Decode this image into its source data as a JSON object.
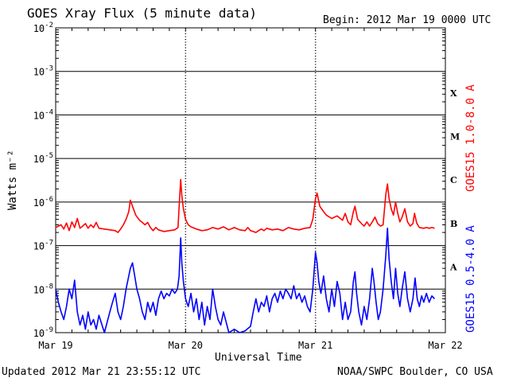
{
  "header": {
    "title": "GOES Xray Flux (5 minute data)",
    "begin": "Begin:  2012 Mar 19 0000 UTC"
  },
  "footer": {
    "updated": "Updated 2012 Mar 21 23:55:12 UTC",
    "credit": "NOAA/SWPC Boulder, CO USA"
  },
  "chart_data": {
    "type": "line",
    "title": "GOES Xray Flux (5 minute data)",
    "xlabel": "Universal Time",
    "ylabel": "Watts m⁻²",
    "yscale": "log",
    "ylim": [
      1e-09,
      0.01
    ],
    "xlim": [
      0,
      72
    ],
    "x_unit": "hours since 2012 Mar 19 0000 UTC",
    "x_ticks": [
      {
        "hour": 0,
        "label": "Mar 19"
      },
      {
        "hour": 24,
        "label": "Mar 20"
      },
      {
        "hour": 48,
        "label": "Mar 21"
      },
      {
        "hour": 72,
        "label": "Mar 22"
      }
    ],
    "y_ticks": [
      {
        "value": 0.01,
        "base": "10",
        "exp": "-2"
      },
      {
        "value": 0.001,
        "base": "10",
        "exp": "-3"
      },
      {
        "value": 0.0001,
        "base": "10",
        "exp": "-4"
      },
      {
        "value": 1e-05,
        "base": "10",
        "exp": "-5"
      },
      {
        "value": 1e-06,
        "base": "10",
        "exp": "-6"
      },
      {
        "value": 1e-07,
        "base": "10",
        "exp": "-7"
      },
      {
        "value": 1e-08,
        "base": "10",
        "exp": "-8"
      },
      {
        "value": 1e-09,
        "base": "10",
        "exp": "-9"
      }
    ],
    "flare_classes": [
      {
        "label": "X",
        "value": 0.00032
      },
      {
        "label": "M",
        "value": 3.2e-05
      },
      {
        "label": "C",
        "value": 3.2e-06
      },
      {
        "label": "B",
        "value": 3.2e-07
      },
      {
        "label": "A",
        "value": 3.2e-08
      }
    ],
    "grid": true,
    "series": [
      {
        "name": "GOES15 1.0-8.0 A",
        "color": "#ff0000",
        "points": [
          [
            0,
            2.6e-07
          ],
          [
            1,
            3e-07
          ],
          [
            1.5,
            2.4e-07
          ],
          [
            2,
            3.3e-07
          ],
          [
            2.5,
            2.2e-07
          ],
          [
            3,
            3.5e-07
          ],
          [
            3.5,
            2.6e-07
          ],
          [
            4,
            4.2e-07
          ],
          [
            4.5,
            2.5e-07
          ],
          [
            5,
            2.8e-07
          ],
          [
            5.5,
            3.2e-07
          ],
          [
            6,
            2.5e-07
          ],
          [
            6.5,
            3e-07
          ],
          [
            7,
            2.6e-07
          ],
          [
            7.5,
            3.4e-07
          ],
          [
            8,
            2.5e-07
          ],
          [
            9,
            2.4e-07
          ],
          [
            10,
            2.3e-07
          ],
          [
            11,
            2.2e-07
          ],
          [
            11.5,
            2e-07
          ],
          [
            12,
            2.4e-07
          ],
          [
            12.5,
            3e-07
          ],
          [
            13,
            4e-07
          ],
          [
            13.5,
            6e-07
          ],
          [
            13.8,
            1.1e-06
          ],
          [
            14.2,
            8e-07
          ],
          [
            14.8,
            5e-07
          ],
          [
            15.5,
            3.8e-07
          ],
          [
            16,
            3.4e-07
          ],
          [
            16.5,
            3e-07
          ],
          [
            17,
            3.4e-07
          ],
          [
            17.5,
            2.6e-07
          ],
          [
            18,
            2.2e-07
          ],
          [
            18.5,
            2.6e-07
          ],
          [
            19,
            2.3e-07
          ],
          [
            20,
            2.1e-07
          ],
          [
            21,
            2.2e-07
          ],
          [
            22,
            2.3e-07
          ],
          [
            22.6,
            2.6e-07
          ],
          [
            22.9,
            1.2e-06
          ],
          [
            23.1,
            3.3e-06
          ],
          [
            23.3,
            1.4e-06
          ],
          [
            23.6,
            7e-07
          ],
          [
            24,
            4e-07
          ],
          [
            24.5,
            3e-07
          ],
          [
            25,
            2.7e-07
          ],
          [
            26,
            2.4e-07
          ],
          [
            27,
            2.2e-07
          ],
          [
            28,
            2.3e-07
          ],
          [
            29,
            2.6e-07
          ],
          [
            30,
            2.4e-07
          ],
          [
            31,
            2.7e-07
          ],
          [
            32,
            2.3e-07
          ],
          [
            33,
            2.6e-07
          ],
          [
            34,
            2.3e-07
          ],
          [
            35,
            2.2e-07
          ],
          [
            35.5,
            2.6e-07
          ],
          [
            36,
            2.2e-07
          ],
          [
            37,
            2e-07
          ],
          [
            37.5,
            2.2e-07
          ],
          [
            38,
            2.4e-07
          ],
          [
            38.5,
            2.2e-07
          ],
          [
            39,
            2.5e-07
          ],
          [
            40,
            2.3e-07
          ],
          [
            41,
            2.4e-07
          ],
          [
            42,
            2.2e-07
          ],
          [
            43,
            2.6e-07
          ],
          [
            44,
            2.4e-07
          ],
          [
            45,
            2.3e-07
          ],
          [
            46,
            2.5e-07
          ],
          [
            47,
            2.6e-07
          ],
          [
            47.5,
            4e-07
          ],
          [
            48,
            1.2e-06
          ],
          [
            48.3,
            1.6e-06
          ],
          [
            48.8,
            8e-07
          ],
          [
            49.5,
            6e-07
          ],
          [
            50,
            5e-07
          ],
          [
            51,
            4.2e-07
          ],
          [
            52,
            4.8e-07
          ],
          [
            53,
            3.8e-07
          ],
          [
            53.5,
            5.5e-07
          ],
          [
            54,
            3.5e-07
          ],
          [
            54.5,
            3e-07
          ],
          [
            55,
            6e-07
          ],
          [
            55.3,
            8e-07
          ],
          [
            55.8,
            4e-07
          ],
          [
            56.5,
            3.2e-07
          ],
          [
            57,
            2.8e-07
          ],
          [
            57.5,
            3.5e-07
          ],
          [
            58,
            2.8e-07
          ],
          [
            58.5,
            3.5e-07
          ],
          [
            59,
            4.5e-07
          ],
          [
            59.5,
            3.2e-07
          ],
          [
            60,
            2.8e-07
          ],
          [
            60.5,
            3e-07
          ],
          [
            61,
            1.5e-06
          ],
          [
            61.3,
            2.6e-06
          ],
          [
            61.6,
            1.2e-06
          ],
          [
            62,
            7e-07
          ],
          [
            62.4,
            5e-07
          ],
          [
            62.8,
            1e-06
          ],
          [
            63.2,
            5.5e-07
          ],
          [
            63.6,
            3.5e-07
          ],
          [
            64,
            4.5e-07
          ],
          [
            64.5,
            7e-07
          ],
          [
            65,
            3.5e-07
          ],
          [
            65.5,
            2.8e-07
          ],
          [
            66,
            3.2e-07
          ],
          [
            66.3,
            5.5e-07
          ],
          [
            66.7,
            3.3e-07
          ],
          [
            67.2,
            2.6e-07
          ],
          [
            68,
            2.5e-07
          ],
          [
            68.5,
            2.6e-07
          ],
          [
            69,
            2.5e-07
          ],
          [
            69.5,
            2.6e-07
          ],
          [
            70,
            2.5e-07
          ]
        ]
      },
      {
        "name": "GOES15 0.5-4.0 A",
        "color": "#0000ff",
        "points": [
          [
            0,
            1e-08
          ],
          [
            0.5,
            5e-09
          ],
          [
            1,
            3e-09
          ],
          [
            1.5,
            2e-09
          ],
          [
            2,
            4e-09
          ],
          [
            2.5,
            1e-08
          ],
          [
            3,
            6e-09
          ],
          [
            3.5,
            1.6e-08
          ],
          [
            4,
            3e-09
          ],
          [
            4.5,
            1.5e-09
          ],
          [
            5,
            2.5e-09
          ],
          [
            5.5,
            1.2e-09
          ],
          [
            6,
            3e-09
          ],
          [
            6.5,
            1.5e-09
          ],
          [
            7,
            2e-09
          ],
          [
            7.5,
            1.2e-09
          ],
          [
            8,
            2.5e-09
          ],
          [
            9,
            1e-09
          ],
          [
            10,
            3e-09
          ],
          [
            10.5,
            5e-09
          ],
          [
            11,
            8e-09
          ],
          [
            11.5,
            3e-09
          ],
          [
            12,
            2e-09
          ],
          [
            12.5,
            4e-09
          ],
          [
            13,
            1e-08
          ],
          [
            13.5,
            2e-08
          ],
          [
            13.8,
            3e-08
          ],
          [
            14.2,
            4e-08
          ],
          [
            14.6,
            2e-08
          ],
          [
            15,
            1e-08
          ],
          [
            15.5,
            6e-09
          ],
          [
            16,
            3e-09
          ],
          [
            16.5,
            2e-09
          ],
          [
            17,
            5e-09
          ],
          [
            17.5,
            3e-09
          ],
          [
            18,
            5e-09
          ],
          [
            18.5,
            2.5e-09
          ],
          [
            19,
            6e-09
          ],
          [
            19.5,
            9e-09
          ],
          [
            20,
            6e-09
          ],
          [
            20.5,
            8e-09
          ],
          [
            21,
            7e-09
          ],
          [
            21.5,
            1e-08
          ],
          [
            22,
            8e-09
          ],
          [
            22.5,
            1e-08
          ],
          [
            22.8,
            2e-08
          ],
          [
            23.1,
            1.5e-07
          ],
          [
            23.3,
            4e-08
          ],
          [
            23.6,
            1.5e-08
          ],
          [
            24,
            6e-09
          ],
          [
            24.5,
            4e-09
          ],
          [
            25,
            8e-09
          ],
          [
            25.5,
            3e-09
          ],
          [
            26,
            6e-09
          ],
          [
            26.5,
            2e-09
          ],
          [
            27,
            5e-09
          ],
          [
            27.5,
            1.5e-09
          ],
          [
            28,
            4e-09
          ],
          [
            28.5,
            2e-09
          ],
          [
            29,
            1e-08
          ],
          [
            29.5,
            4e-09
          ],
          [
            30,
            2e-09
          ],
          [
            30.5,
            1.5e-09
          ],
          [
            31,
            3e-09
          ],
          [
            32,
            1e-09
          ],
          [
            33,
            1.2e-09
          ],
          [
            34,
            1e-09
          ],
          [
            35,
            1.1e-09
          ],
          [
            36,
            1.4e-09
          ],
          [
            36.5,
            3e-09
          ],
          [
            37,
            6e-09
          ],
          [
            37.5,
            3e-09
          ],
          [
            38,
            5e-09
          ],
          [
            38.5,
            4e-09
          ],
          [
            39,
            7e-09
          ],
          [
            39.5,
            3e-09
          ],
          [
            40,
            6e-09
          ],
          [
            40.5,
            8e-09
          ],
          [
            41,
            5e-09
          ],
          [
            41.5,
            9e-09
          ],
          [
            42,
            6e-09
          ],
          [
            42.5,
            1e-08
          ],
          [
            43,
            8e-09
          ],
          [
            43.5,
            6e-09
          ],
          [
            44,
            1.2e-08
          ],
          [
            44.5,
            6e-09
          ],
          [
            45,
            8e-09
          ],
          [
            45.5,
            5e-09
          ],
          [
            46,
            7e-09
          ],
          [
            46.5,
            4e-09
          ],
          [
            47,
            3e-09
          ],
          [
            47.5,
            1e-08
          ],
          [
            48,
            7e-08
          ],
          [
            48.3,
            4e-08
          ],
          [
            48.6,
            1.5e-08
          ],
          [
            49,
            8e-09
          ],
          [
            49.5,
            2e-08
          ],
          [
            50,
            6e-09
          ],
          [
            50.5,
            3e-09
          ],
          [
            51,
            1e-08
          ],
          [
            51.5,
            4e-09
          ],
          [
            52,
            1.5e-08
          ],
          [
            52.5,
            8e-09
          ],
          [
            53,
            2e-09
          ],
          [
            53.5,
            5e-09
          ],
          [
            54,
            2e-09
          ],
          [
            54.5,
            3e-09
          ],
          [
            55,
            1.5e-08
          ],
          [
            55.3,
            2.5e-08
          ],
          [
            55.6,
            8e-09
          ],
          [
            56,
            3e-09
          ],
          [
            56.5,
            1.5e-09
          ],
          [
            57,
            4e-09
          ],
          [
            57.5,
            2e-09
          ],
          [
            58,
            6e-09
          ],
          [
            58.5,
            3e-08
          ],
          [
            58.8,
            1.5e-08
          ],
          [
            59.2,
            5e-09
          ],
          [
            59.6,
            2e-09
          ],
          [
            60,
            3e-09
          ],
          [
            60.5,
            1e-08
          ],
          [
            61,
            6e-08
          ],
          [
            61.3,
            2.5e-07
          ],
          [
            61.6,
            5e-08
          ],
          [
            62,
            1.5e-08
          ],
          [
            62.4,
            6e-09
          ],
          [
            62.8,
            3e-08
          ],
          [
            63.2,
            8e-09
          ],
          [
            63.6,
            4e-09
          ],
          [
            64,
            1e-08
          ],
          [
            64.5,
            2.5e-08
          ],
          [
            65,
            6e-09
          ],
          [
            65.5,
            3e-09
          ],
          [
            66,
            6e-09
          ],
          [
            66.4,
            1.8e-08
          ],
          [
            66.8,
            6e-09
          ],
          [
            67.2,
            4e-09
          ],
          [
            67.6,
            7e-09
          ],
          [
            68,
            5e-09
          ],
          [
            68.5,
            8e-09
          ],
          [
            69,
            5e-09
          ],
          [
            69.5,
            7e-09
          ],
          [
            70,
            6e-09
          ]
        ]
      }
    ]
  }
}
